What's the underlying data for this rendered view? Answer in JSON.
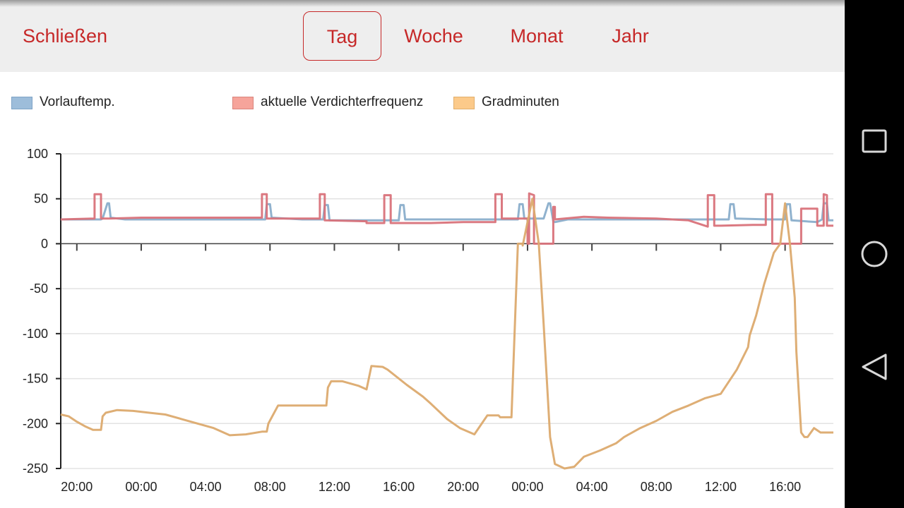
{
  "topbar": {
    "close_label": "Schließen",
    "tabs": [
      {
        "label": "Tag",
        "selected": true
      },
      {
        "label": "Woche",
        "selected": false
      },
      {
        "label": "Monat",
        "selected": false
      },
      {
        "label": "Jahr",
        "selected": false
      }
    ]
  },
  "colors": {
    "accent": "#c62828",
    "topbar_bg": "#eeeeee",
    "navbar_bg": "#000000"
  },
  "legend": [
    {
      "label": "Vorlauftemp.",
      "fill": "#9dbdda",
      "stroke": "#7ea3c6"
    },
    {
      "label": "aktuelle Verdichterfrequenz",
      "fill": "#f6a49b",
      "stroke": "#d9847c"
    },
    {
      "label": "Gradminuten",
      "fill": "#fcca8a",
      "stroke": "#e1ae6c"
    }
  ],
  "navbar": {
    "icons": [
      "recent-apps-icon",
      "home-icon",
      "back-icon"
    ]
  },
  "chart_data": {
    "type": "line",
    "x_ticks": [
      "20:00",
      "00:00",
      "04:00",
      "08:00",
      "12:00",
      "16:00",
      "20:00",
      "00:00",
      "04:00",
      "08:00",
      "12:00",
      "16:00"
    ],
    "x_range_hours": [
      19.0,
      67.0
    ],
    "y_ticks": [
      "100",
      "50",
      "0",
      "-50",
      "-100",
      "-150",
      "-200",
      "-250"
    ],
    "ylim": [
      -250,
      100
    ],
    "grid": true,
    "series": [
      {
        "name": "Vorlauftemp.",
        "color": "#8aaecb",
        "x": [
          19.0,
          21.5,
          21.6,
          21.9,
          22.0,
          22.1,
          23.0,
          26.0,
          29.0,
          31.7,
          31.8,
          32.0,
          32.1,
          34.0,
          35.3,
          35.4,
          35.6,
          35.7,
          38.0,
          40.0,
          40.1,
          40.3,
          40.4,
          44.0,
          46.0,
          47.4,
          47.5,
          47.7,
          47.8,
          49.0,
          49.3,
          49.4,
          49.6,
          49.7,
          50.5,
          51.5,
          56.0,
          60.0,
          60.5,
          60.6,
          60.8,
          60.9,
          63.0,
          64.0,
          64.1,
          64.3,
          64.4,
          66.0,
          66.3,
          66.4,
          66.6,
          66.7,
          67.0
        ],
        "y": [
          27,
          27,
          28,
          45,
          45,
          29,
          27,
          27,
          27,
          27,
          44,
          44,
          29,
          27,
          27,
          43,
          43,
          26,
          26,
          26,
          43,
          43,
          27,
          27,
          27,
          27,
          44,
          44,
          28,
          28,
          45,
          45,
          25,
          24,
          27,
          27,
          27,
          27,
          27,
          44,
          44,
          28,
          27,
          27,
          44,
          44,
          26,
          24,
          27,
          45,
          45,
          26,
          26
        ]
      },
      {
        "name": "aktuelle Verdichterfrequenz",
        "color": "#d9727a",
        "x": [
          19.0,
          21.1,
          21.1,
          21.5,
          21.5,
          22.0,
          24.0,
          31.5,
          31.5,
          31.8,
          31.8,
          34.0,
          35.1,
          35.1,
          35.4,
          35.4,
          38.0,
          38.0,
          39.1,
          39.1,
          39.5,
          39.5,
          42.0,
          44.0,
          46.0,
          46.0,
          46.4,
          46.4,
          48.0,
          48.0,
          48.1,
          48.1,
          48.4,
          48.4,
          48.6,
          48.6,
          49.6,
          49.6,
          49.7,
          49.7,
          51.5,
          53.0,
          56.0,
          58.0,
          59.2,
          59.2,
          59.6,
          59.6,
          60.0,
          62.0,
          62.8,
          62.8,
          63.2,
          63.2,
          65.0,
          65.0,
          66.0,
          66.0,
          66.4,
          66.4,
          66.6,
          66.6,
          67.0
        ],
        "y": [
          27,
          28,
          55,
          55,
          28,
          28,
          29,
          29,
          55,
          55,
          28,
          28,
          28,
          55,
          55,
          26,
          25,
          23,
          23,
          54,
          54,
          23,
          23,
          24,
          24,
          55,
          55,
          28,
          28,
          0,
          0,
          56,
          54,
          0,
          0,
          0,
          0,
          41,
          41,
          27,
          30,
          29,
          28,
          26,
          19,
          54,
          54,
          20,
          20,
          21,
          21,
          55,
          55,
          0,
          0,
          39,
          39,
          20,
          20,
          55,
          54,
          20,
          20
        ]
      },
      {
        "name": "Gradminuten",
        "color": "#dcaa6e",
        "x": [
          19.0,
          19.5,
          20.0,
          20.5,
          21.0,
          21.5,
          21.6,
          21.8,
          22.5,
          23.5,
          24.5,
          25.5,
          26.5,
          27.5,
          28.5,
          29.5,
          30.5,
          31.5,
          31.8,
          31.9,
          32.5,
          33.5,
          34.5,
          35.5,
          35.6,
          35.8,
          36.5,
          37.5,
          38.0,
          38.3,
          39.0,
          39.3,
          40.5,
          41.5,
          42.0,
          43.0,
          43.8,
          44.7,
          45.5,
          46.2,
          46.3,
          47.0,
          47.4,
          47.7,
          47.7,
          48.3,
          48.7,
          49.0,
          49.4,
          49.7,
          50.3,
          50.9,
          51.5,
          52.5,
          53.5,
          54.0,
          55.0,
          56.0,
          57.0,
          58.0,
          59.0,
          60.0,
          61.0,
          61.7,
          61.8,
          62.2,
          62.7,
          63.3,
          63.7,
          64.0,
          64.3,
          64.6,
          64.7,
          65.0,
          65.2,
          65.4,
          65.8,
          66.2,
          66.4,
          66.6,
          66.7,
          67.0
        ],
        "y": [
          -190,
          -192,
          -198,
          -203,
          -207,
          -207,
          -192,
          -188,
          -185,
          -186,
          -188,
          -190,
          -195,
          -200,
          -205,
          -213,
          -212,
          -209,
          -209,
          -200,
          -180,
          -180,
          -180,
          -180,
          -160,
          -153,
          -153,
          -158,
          -162,
          -136,
          -137,
          -140,
          -157,
          -170,
          -178,
          -195,
          -205,
          -212,
          -191,
          -191,
          -193,
          -193,
          0,
          0,
          -2,
          50,
          0,
          -90,
          -215,
          -245,
          -250,
          -248,
          -237,
          -230,
          -222,
          -215,
          -205,
          -197,
          -187,
          -180,
          -172,
          -167,
          -140,
          -115,
          -102,
          -80,
          -45,
          -10,
          0,
          45,
          0,
          -60,
          -120,
          -210,
          -215,
          -215,
          -205,
          -210,
          -210,
          -210,
          -210,
          -210
        ]
      }
    ]
  }
}
